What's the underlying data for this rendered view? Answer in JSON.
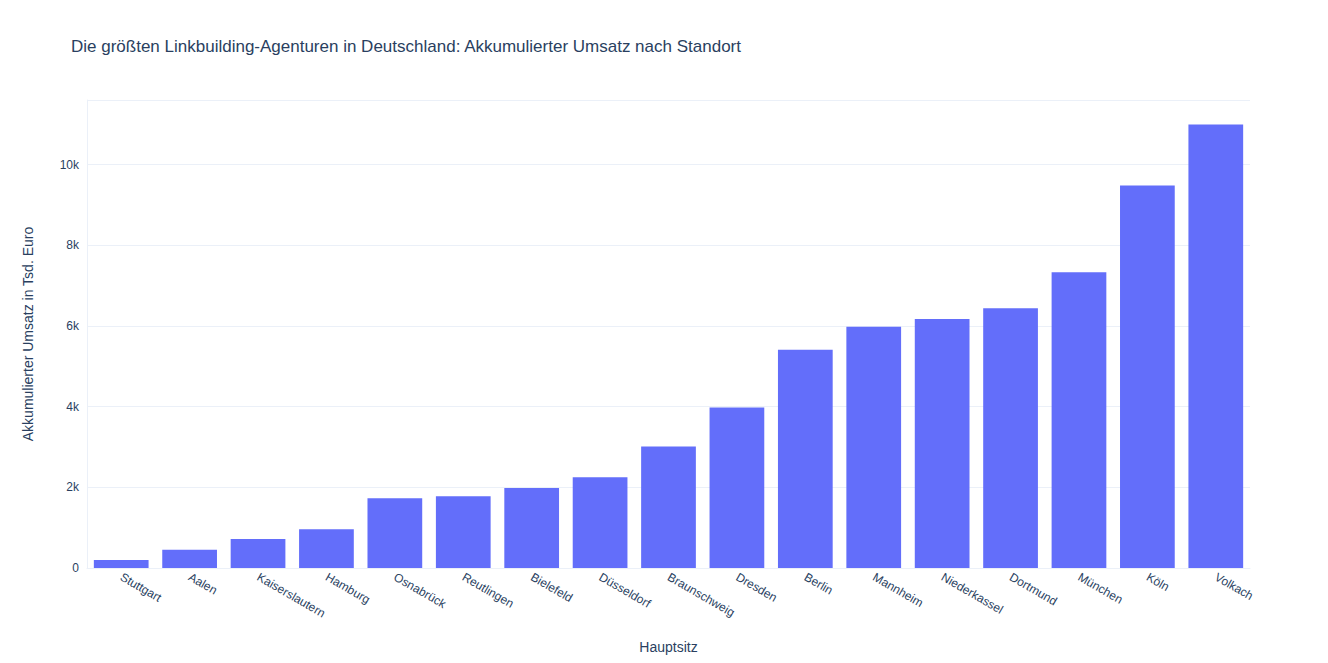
{
  "chart_data": {
    "type": "bar",
    "title": "Die größten Linkbuilding-Agenturen in Deutschland: Akkumulierter Umsatz nach Standort",
    "x_label": "Hauptsitz",
    "y_label": "Akkumulierter Umsatz in Tsd. Euro",
    "categories": [
      "Stuttgart",
      "Aalen",
      "Kaiserslautern",
      "Hamburg",
      "Osnabrück",
      "Reutlingen",
      "Bielefeld",
      "Düsseldorf",
      "Braunschweig",
      "Dresden",
      "Berlin",
      "Mannheim",
      "Niederkassel",
      "Dortmund",
      "München",
      "Köln",
      "Volkach"
    ],
    "values": [
      200,
      450,
      720,
      960,
      1730,
      1780,
      1980,
      2250,
      3010,
      3980,
      5410,
      5980,
      6170,
      6440,
      7330,
      9480,
      10990
    ],
    "color": "#636efa",
    "ylim": [
      0,
      11600
    ],
    "yticks": [
      0,
      {
        "value": 2000,
        "label": "2k"
      },
      {
        "value": 4000,
        "label": "4k"
      },
      {
        "value": 6000,
        "label": "6k"
      },
      {
        "value": 8000,
        "label": "8k"
      },
      {
        "value": 10000,
        "label": "10k"
      }
    ],
    "grid": true
  }
}
